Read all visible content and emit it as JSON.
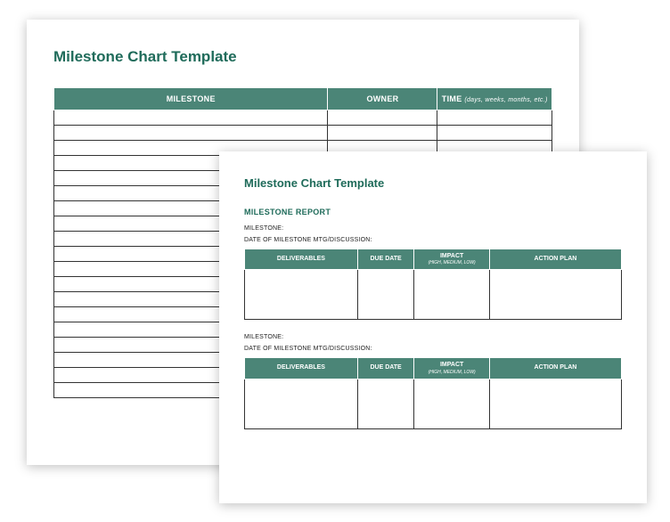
{
  "colors": {
    "header_bg": "#4b8577",
    "header_text": "#ffffff",
    "title_color": "#1f6b5a",
    "cell_border": "#333333",
    "page_bg": "#ffffff"
  },
  "back_page": {
    "title": "Milestone Chart Template",
    "columns": {
      "c1": "MILESTONE",
      "c2": "OWNER",
      "c3_main": "TIME",
      "c3_sub": "(days, weeks, months, etc.)"
    },
    "col_widths": {
      "c1": "55%",
      "c2": "22%",
      "c3": "23%"
    },
    "body_row_count": 19
  },
  "front_page": {
    "title": "Milestone Chart Template",
    "report_heading": "MILESTONE REPORT",
    "labels": {
      "milestone": "MILESTONE:",
      "date": "DATE OF MILESTONE MTG/DISCUSSION:"
    },
    "columns": {
      "c1": "DELIVERABLES",
      "c2": "DUE DATE",
      "c3_main": "IMPACT",
      "c3_sub": "(HIGH, MEDIUM, LOW)",
      "c4": "ACTION PLAN"
    },
    "col_widths": {
      "c1": "30%",
      "c2": "15%",
      "c3": "20%",
      "c4": "35%"
    }
  }
}
